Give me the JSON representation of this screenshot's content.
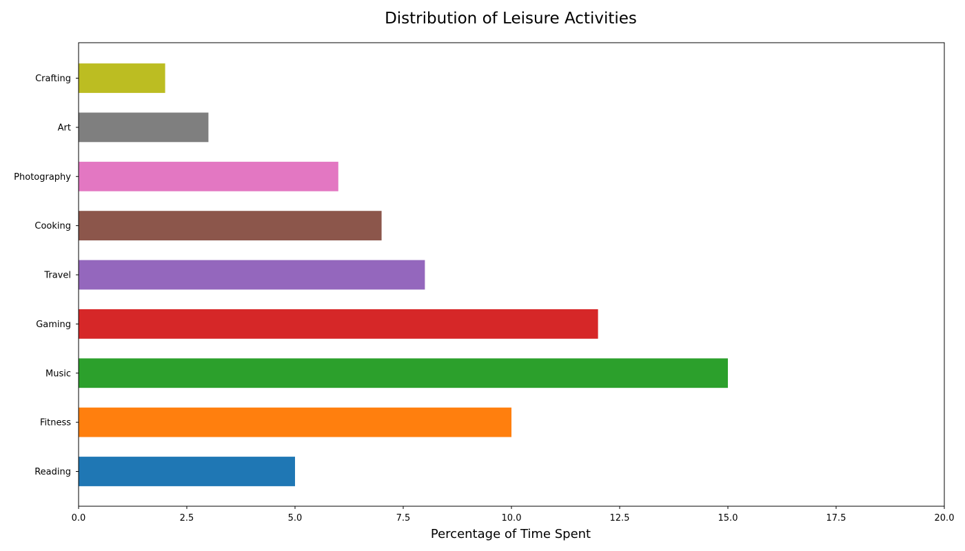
{
  "chart_data": {
    "type": "bar",
    "orientation": "horizontal",
    "title": "Distribution of Leisure Activities",
    "xlabel": "Percentage of Time Spent",
    "ylabel": "",
    "xlim": [
      0,
      20
    ],
    "xticks": [
      "0.0",
      "2.5",
      "5.0",
      "7.5",
      "10.0",
      "12.5",
      "15.0",
      "17.5",
      "20.0"
    ],
    "grid": false,
    "categories": [
      "Reading",
      "Fitness",
      "Music",
      "Gaming",
      "Travel",
      "Cooking",
      "Photography",
      "Art",
      "Crafting"
    ],
    "values": [
      5,
      10,
      15,
      12,
      8,
      7,
      6,
      3,
      2
    ],
    "colors": [
      "#1f77b4",
      "#ff7f0e",
      "#2ca02c",
      "#d62728",
      "#9467bd",
      "#8c564b",
      "#e377c2",
      "#7f7f7f",
      "#bcbd22"
    ]
  }
}
